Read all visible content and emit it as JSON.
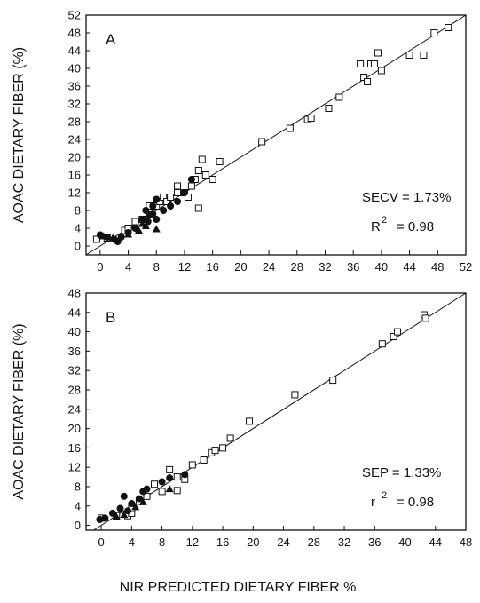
{
  "figure": {
    "ylabel": "AOAC DIETARY FIBER (%)",
    "xlabel": "NIR PREDICTED DIETARY FIBER %"
  },
  "chart_data": [
    {
      "type": "scatter",
      "panel_label": "A",
      "ylabel": "AOAC DIETARY FIBER (%)",
      "xlim": [
        -2,
        52
      ],
      "ylim": [
        -2,
        52
      ],
      "xticks": [
        0,
        4,
        8,
        12,
        16,
        20,
        24,
        28,
        32,
        36,
        40,
        44,
        48,
        52
      ],
      "yticks": [
        0,
        4,
        8,
        12,
        16,
        20,
        24,
        28,
        32,
        36,
        40,
        44,
        48,
        52
      ],
      "stats": {
        "label1": "SECV = 1.73%",
        "r_symbol": "R",
        "r_exp": "2",
        "r_value": "= 0.98"
      },
      "identity_line": [
        [
          -2,
          -2
        ],
        [
          52,
          52
        ]
      ],
      "series": [
        {
          "marker": "open-square",
          "points": [
            [
              -0.5,
              1.5
            ],
            [
              1,
              1.8
            ],
            [
              3.5,
              3.5
            ],
            [
              4,
              4
            ],
            [
              5,
              5.5
            ],
            [
              6,
              6
            ],
            [
              7,
              9
            ],
            [
              8,
              9
            ],
            [
              8.5,
              10
            ],
            [
              9,
              11
            ],
            [
              9.5,
              10
            ],
            [
              10,
              11
            ],
            [
              11,
              12
            ],
            [
              11,
              13.5
            ],
            [
              12,
              12
            ],
            [
              12.5,
              11
            ],
            [
              13,
              13.5
            ],
            [
              13.5,
              15
            ],
            [
              14,
              17
            ],
            [
              14.5,
              19.5
            ],
            [
              14,
              8.5
            ],
            [
              15,
              16
            ],
            [
              16,
              15
            ],
            [
              17,
              19
            ],
            [
              23,
              23.5
            ],
            [
              27,
              26.5
            ],
            [
              29.5,
              28.5
            ],
            [
              30,
              28.8
            ],
            [
              32.5,
              31
            ],
            [
              34,
              33.5
            ],
            [
              37,
              41
            ],
            [
              37.5,
              38
            ],
            [
              38,
              37
            ],
            [
              38.5,
              41
            ],
            [
              39,
              41
            ],
            [
              39.5,
              43.5
            ],
            [
              40,
              39.5
            ],
            [
              44,
              43
            ],
            [
              46,
              43
            ],
            [
              47.5,
              48
            ],
            [
              49.5,
              49.2
            ]
          ]
        },
        {
          "marker": "filled-circle",
          "points": [
            [
              0,
              2.5
            ],
            [
              1,
              2
            ],
            [
              2,
              1.5
            ],
            [
              2.5,
              1
            ],
            [
              3,
              2
            ],
            [
              4,
              3
            ],
            [
              5,
              4
            ],
            [
              6,
              6
            ],
            [
              6.5,
              8
            ],
            [
              7,
              7
            ],
            [
              7.5,
              9
            ],
            [
              8,
              10.5
            ],
            [
              8,
              6
            ],
            [
              9,
              8
            ],
            [
              10,
              9
            ],
            [
              11,
              10
            ],
            [
              12,
              12
            ],
            [
              13,
              15
            ],
            [
              6.8,
              5.5
            ],
            [
              7.5,
              7.2
            ]
          ]
        },
        {
          "marker": "filled-triangle",
          "points": [
            [
              0.5,
              2.2
            ],
            [
              1.8,
              1.8
            ],
            [
              4,
              2.6
            ],
            [
              5.5,
              3.5
            ],
            [
              6,
              5
            ],
            [
              6.5,
              4.5
            ],
            [
              8,
              3.8
            ]
          ]
        }
      ]
    },
    {
      "type": "scatter",
      "panel_label": "B",
      "ylabel": "AOAC DIETARY FIBER (%)",
      "xlim": [
        -2,
        48
      ],
      "ylim": [
        -1,
        48
      ],
      "xticks": [
        0,
        4,
        8,
        12,
        16,
        20,
        24,
        28,
        32,
        36,
        40,
        44,
        48
      ],
      "yticks": [
        0,
        4,
        8,
        12,
        16,
        20,
        24,
        28,
        32,
        36,
        40,
        44,
        48
      ],
      "stats": {
        "label1": "SEP = 1.33%",
        "r_symbol": "r",
        "r_exp": "2",
        "r_value": "= 0.98"
      },
      "identity_line": [
        [
          -2,
          -2
        ],
        [
          48,
          48
        ]
      ],
      "series": [
        {
          "marker": "open-square",
          "points": [
            [
              0,
              1.5
            ],
            [
              2,
              2
            ],
            [
              3.5,
              2
            ],
            [
              4,
              2.5
            ],
            [
              4,
              3.5
            ],
            [
              5,
              5
            ],
            [
              6,
              6
            ],
            [
              7,
              8.5
            ],
            [
              8,
              7
            ],
            [
              9,
              11.5
            ],
            [
              10,
              10
            ],
            [
              10,
              7.2
            ],
            [
              11,
              9.5
            ],
            [
              12,
              12.5
            ],
            [
              13.5,
              13.5
            ],
            [
              14.5,
              15
            ],
            [
              15,
              15.5
            ],
            [
              16,
              16
            ],
            [
              17,
              18
            ],
            [
              19.5,
              21.5
            ],
            [
              25.5,
              27
            ],
            [
              30.5,
              30
            ],
            [
              37,
              37.5
            ],
            [
              38.5,
              39
            ],
            [
              39,
              40
            ],
            [
              42.5,
              43.5
            ],
            [
              42.7,
              42.8
            ]
          ]
        },
        {
          "marker": "filled-circle",
          "points": [
            [
              -0.2,
              1.2
            ],
            [
              0.5,
              1.5
            ],
            [
              1.5,
              2.5
            ],
            [
              2.5,
              3.5
            ],
            [
              3,
              6
            ],
            [
              3.5,
              3
            ],
            [
              4,
              4.5
            ],
            [
              5,
              5.5
            ],
            [
              5.5,
              7
            ],
            [
              6,
              7.5
            ],
            [
              8,
              9
            ],
            [
              9,
              9.8
            ],
            [
              11,
              10.5
            ]
          ]
        },
        {
          "marker": "filled-triangle",
          "points": [
            [
              2,
              1.8
            ],
            [
              3,
              2.2
            ],
            [
              4.5,
              3.8
            ],
            [
              5.5,
              4.8
            ],
            [
              9,
              7.5
            ]
          ]
        }
      ]
    }
  ]
}
